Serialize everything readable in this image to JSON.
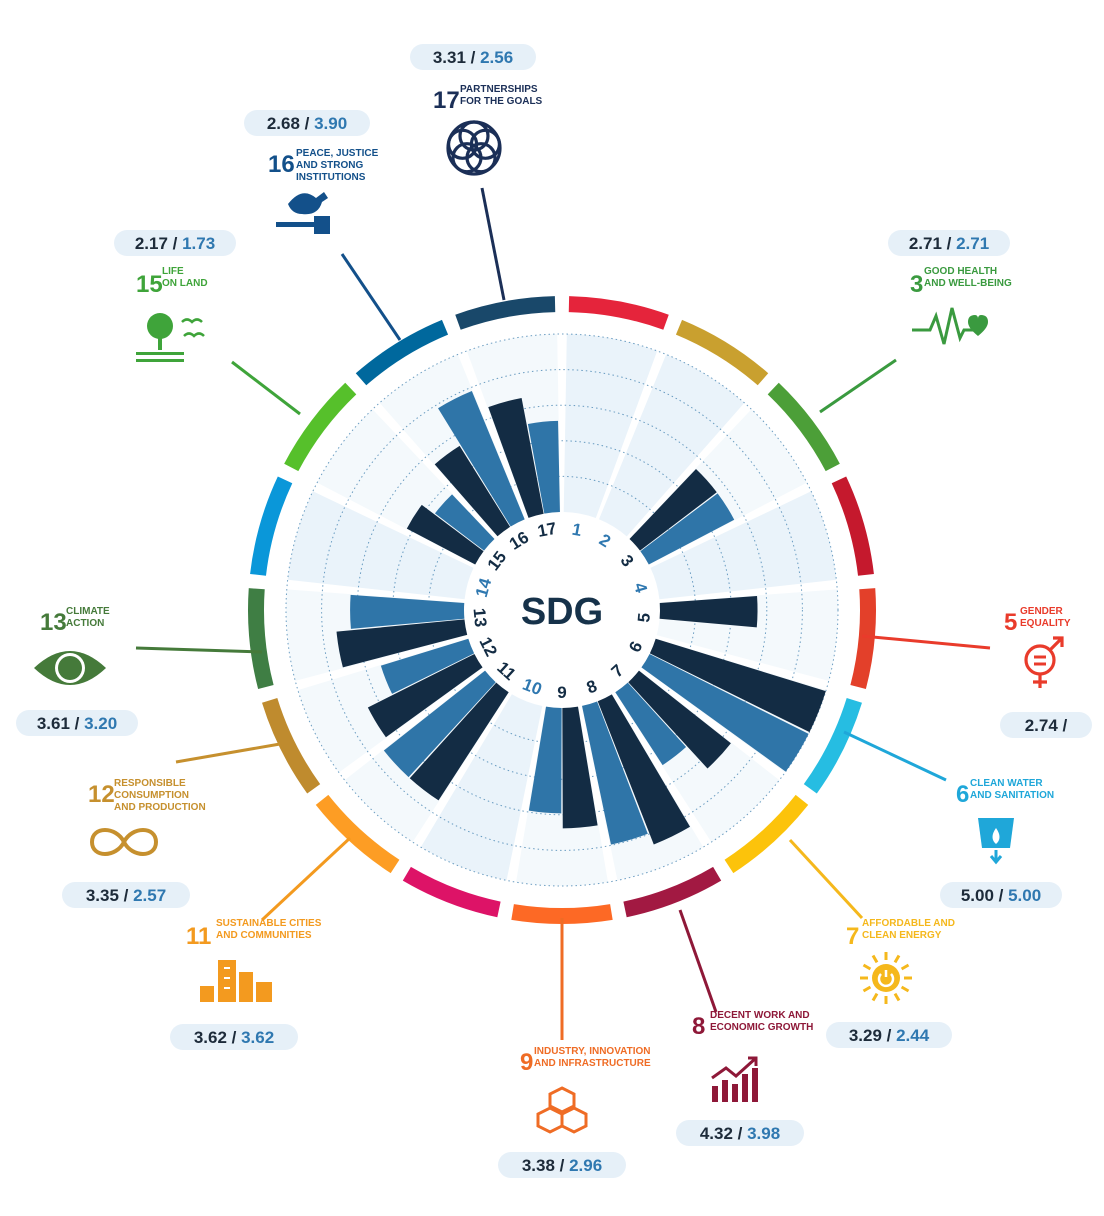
{
  "center_label": "SDG",
  "colors": {
    "dark_bar": "#132c44",
    "light_bar": "#2f75a8",
    "sector_bg": "#eaf3fa",
    "pill_bg": "#e6f0f8",
    "grid": "#2f75a8"
  },
  "chart_data": {
    "type": "radial-bar",
    "series": [
      {},
      {}
    ],
    "ring_labels": [
      "1",
      "2",
      "3",
      "4",
      "5",
      "6",
      "7",
      "8",
      "9",
      "10",
      "11",
      "12",
      "13",
      "14",
      "15",
      "16",
      "17"
    ],
    "values_dark": [
      null,
      null,
      2.71,
      null,
      2.74,
      5.0,
      3.29,
      4.32,
      3.38,
      null,
      3.62,
      3.35,
      3.61,
      null,
      2.17,
      2.68,
      3.31
    ],
    "values_light": [
      null,
      null,
      2.71,
      null,
      null,
      5.0,
      2.44,
      3.98,
      2.96,
      null,
      3.62,
      2.57,
      3.2,
      null,
      1.73,
      3.9,
      2.56
    ],
    "rmax": 5
  },
  "goals": [
    {
      "id": "g17",
      "num": "17",
      "lines": [
        "PARTNERSHIPS",
        "FOR THE GOALS"
      ],
      "color": "#1b2f57",
      "a": "3.31",
      "b": "2.56",
      "icon": "partnership-rings-icon"
    },
    {
      "id": "g16",
      "num": "16",
      "lines": [
        "PEACE, JUSTICE",
        "AND STRONG",
        "INSTITUTIONS"
      ],
      "color": "#13508a",
      "a": "2.68",
      "b": "3.90",
      "icon": "dove-gavel-icon"
    },
    {
      "id": "g15",
      "num": "15",
      "lines": [
        "LIFE",
        "ON LAND"
      ],
      "color": "#3fa43a",
      "a": "2.17",
      "b": "1.73",
      "icon": "tree-birds-icon"
    },
    {
      "id": "g3",
      "num": "3",
      "lines": [
        "GOOD HEALTH",
        "AND WELL-BEING"
      ],
      "color": "#3a9a3f",
      "a": "2.71",
      "b": "2.71",
      "icon": "heartbeat-icon"
    },
    {
      "id": "g5",
      "num": "5",
      "lines": [
        "GENDER",
        "EQUALITY"
      ],
      "color": "#e93b2b",
      "a": "2.74",
      "b": "",
      "icon": "gender-equality-icon"
    },
    {
      "id": "g13",
      "num": "13",
      "lines": [
        "CLIMATE",
        "ACTION"
      ],
      "color": "#457a3a",
      "a": "3.61",
      "b": "3.20",
      "icon": "globe-eye-icon"
    },
    {
      "id": "g6",
      "num": "6",
      "lines": [
        "CLEAN WATER",
        "AND SANITATION"
      ],
      "color": "#1fa7d9",
      "a": "5.00",
      "b": "5.00",
      "icon": "water-drop-icon"
    },
    {
      "id": "g12",
      "num": "12",
      "lines": [
        "RESPONSIBLE",
        "CONSUMPTION",
        "AND PRODUCTION"
      ],
      "color": "#c6902e",
      "a": "3.35",
      "b": "2.57",
      "icon": "infinity-icon"
    },
    {
      "id": "g11",
      "num": "11",
      "lines": [
        "SUSTAINABLE CITIES",
        "AND COMMUNITIES"
      ],
      "color": "#f39a1f",
      "a": "3.62",
      "b": "3.62",
      "icon": "city-buildings-icon"
    },
    {
      "id": "g7",
      "num": "7",
      "lines": [
        "AFFORDABLE AND",
        "CLEAN ENERGY"
      ],
      "color": "#f5b81c",
      "a": "3.29",
      "b": "2.44",
      "icon": "sun-power-icon"
    },
    {
      "id": "g9",
      "num": "9",
      "lines": [
        "INDUSTRY, INNOVATION",
        "AND INFRASTRUCTURE"
      ],
      "color": "#ef6c25",
      "a": "3.38",
      "b": "2.96",
      "icon": "cubes-icon"
    },
    {
      "id": "g8",
      "num": "8",
      "lines": [
        "DECENT WORK AND",
        "ECONOMIC GROWTH"
      ],
      "color": "#8e1838",
      "a": "4.32",
      "b": "3.98",
      "icon": "growth-chart-icon"
    }
  ]
}
